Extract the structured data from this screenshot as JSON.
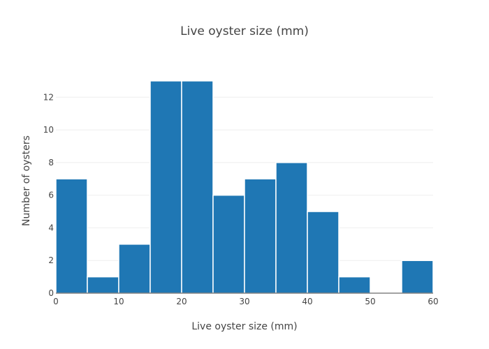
{
  "chart_data": {
    "type": "bar",
    "histogram": true,
    "title": "Live oyster size (mm)",
    "xlabel": "Live oyster size (mm)",
    "ylabel": "Number of oysters",
    "bin_edges": [
      0,
      5,
      10,
      15,
      20,
      25,
      30,
      35,
      40,
      45,
      50,
      55,
      60
    ],
    "values": [
      7,
      1,
      3,
      13,
      13,
      6,
      7,
      8,
      5,
      1,
      0,
      2
    ],
    "xlim": [
      0,
      60
    ],
    "ylim": [
      0,
      13.68
    ],
    "x_ticks": [
      0,
      10,
      20,
      30,
      40,
      50,
      60
    ],
    "y_ticks": [
      0,
      2,
      4,
      6,
      8,
      10,
      12
    ],
    "grid": true,
    "bar_color": "#1f77b4",
    "bar_edge_color": "#ffffff"
  }
}
